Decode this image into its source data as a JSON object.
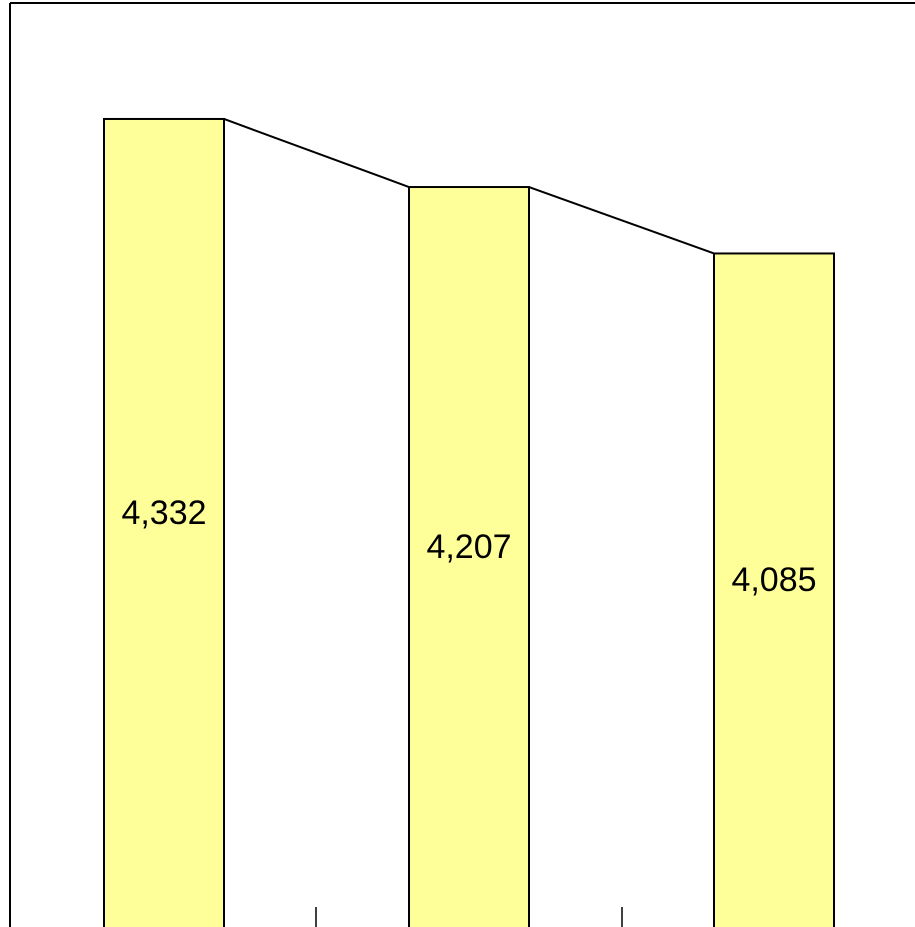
{
  "chart_data": {
    "type": "bar",
    "categories": [
      "",
      "",
      ""
    ],
    "series": [
      {
        "values": [
          4332,
          4207,
          4085
        ]
      }
    ],
    "data_labels": [
      "4,332",
      "4,207",
      "4,085"
    ],
    "connector_line": true,
    "ylim": [
      2848,
      4545
    ],
    "grid": false,
    "legend": "none",
    "colors": {
      "bar_fill": "#FFFF99",
      "bar_stroke": "#000000",
      "frame": "#000000",
      "background": "#FFFFFF"
    }
  }
}
